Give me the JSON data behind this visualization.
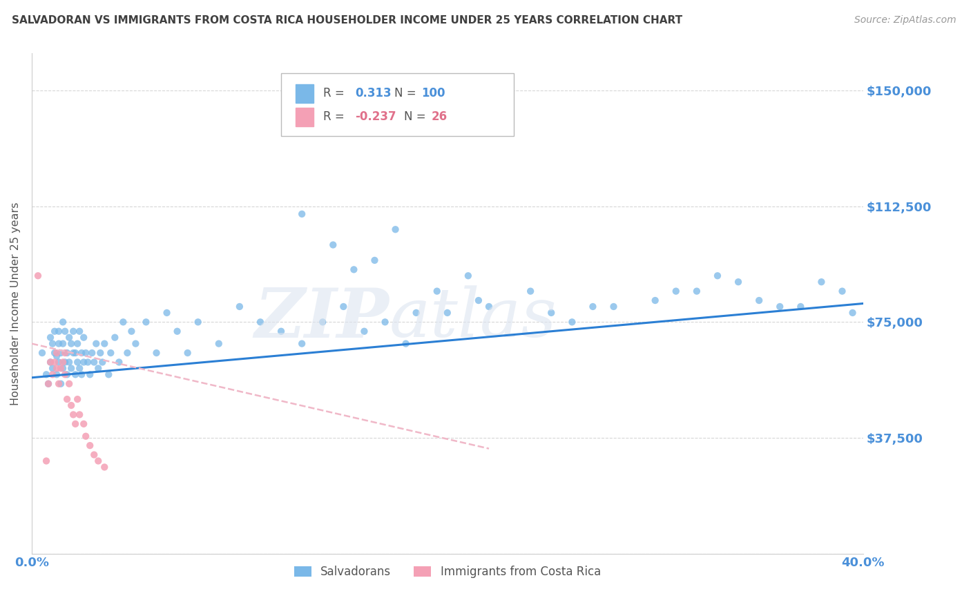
{
  "title": "SALVADORAN VS IMMIGRANTS FROM COSTA RICA HOUSEHOLDER INCOME UNDER 25 YEARS CORRELATION CHART",
  "source": "Source: ZipAtlas.com",
  "ylabel": "Householder Income Under 25 years",
  "yticks": [
    0,
    37500,
    75000,
    112500,
    150000
  ],
  "ytick_labels": [
    "",
    "$37,500",
    "$75,000",
    "$112,500",
    "$150,000"
  ],
  "xlim": [
    0.0,
    0.4
  ],
  "ylim": [
    0,
    162000
  ],
  "watermark": "ZIPAtlas",
  "salvadoran_color": "#7ab8e8",
  "costarica_color": "#f4a0b5",
  "trend_blue": "#2b7fd4",
  "trend_pink": "#f0b8c8",
  "axis_label_color": "#4a90d9",
  "grid_color": "#cccccc",
  "title_color": "#404040",
  "watermark_color": "#dde5f0",
  "blue_trend_x0": 0.0,
  "blue_trend_x1": 0.4,
  "blue_trend_y0": 57000,
  "blue_trend_y1": 81000,
  "pink_trend_x0": 0.0,
  "pink_trend_x1": 0.22,
  "pink_trend_y0": 68000,
  "pink_trend_y1": 34000,
  "salvadoran_x": [
    0.005,
    0.007,
    0.008,
    0.009,
    0.009,
    0.01,
    0.01,
    0.011,
    0.011,
    0.012,
    0.012,
    0.013,
    0.013,
    0.013,
    0.014,
    0.014,
    0.015,
    0.015,
    0.015,
    0.016,
    0.016,
    0.017,
    0.017,
    0.018,
    0.018,
    0.019,
    0.019,
    0.02,
    0.02,
    0.021,
    0.021,
    0.022,
    0.022,
    0.023,
    0.023,
    0.024,
    0.024,
    0.025,
    0.025,
    0.026,
    0.027,
    0.028,
    0.029,
    0.03,
    0.031,
    0.032,
    0.033,
    0.034,
    0.035,
    0.037,
    0.038,
    0.04,
    0.042,
    0.044,
    0.046,
    0.048,
    0.05,
    0.055,
    0.06,
    0.065,
    0.07,
    0.075,
    0.08,
    0.09,
    0.1,
    0.11,
    0.12,
    0.13,
    0.14,
    0.15,
    0.16,
    0.17,
    0.18,
    0.2,
    0.22,
    0.24,
    0.26,
    0.28,
    0.3,
    0.32,
    0.34,
    0.36,
    0.165,
    0.185,
    0.21,
    0.25,
    0.27,
    0.31,
    0.33,
    0.35,
    0.37,
    0.38,
    0.39,
    0.395,
    0.13,
    0.145,
    0.155,
    0.175,
    0.195,
    0.215
  ],
  "salvadoran_y": [
    65000,
    58000,
    55000,
    62000,
    70000,
    60000,
    68000,
    65000,
    72000,
    58000,
    64000,
    62000,
    68000,
    72000,
    55000,
    65000,
    60000,
    68000,
    75000,
    62000,
    72000,
    58000,
    65000,
    62000,
    70000,
    60000,
    68000,
    65000,
    72000,
    58000,
    65000,
    62000,
    68000,
    60000,
    72000,
    58000,
    65000,
    62000,
    70000,
    65000,
    62000,
    58000,
    65000,
    62000,
    68000,
    60000,
    65000,
    62000,
    68000,
    58000,
    65000,
    70000,
    62000,
    75000,
    65000,
    72000,
    68000,
    75000,
    65000,
    78000,
    72000,
    65000,
    75000,
    68000,
    80000,
    75000,
    72000,
    68000,
    75000,
    80000,
    72000,
    75000,
    68000,
    78000,
    80000,
    85000,
    75000,
    80000,
    82000,
    85000,
    88000,
    80000,
    95000,
    78000,
    90000,
    78000,
    80000,
    85000,
    90000,
    82000,
    80000,
    88000,
    85000,
    78000,
    110000,
    100000,
    92000,
    105000,
    85000,
    82000
  ],
  "costarica_x": [
    0.003,
    0.007,
    0.008,
    0.009,
    0.01,
    0.011,
    0.012,
    0.012,
    0.013,
    0.014,
    0.015,
    0.016,
    0.016,
    0.017,
    0.018,
    0.019,
    0.02,
    0.021,
    0.022,
    0.023,
    0.025,
    0.026,
    0.028,
    0.03,
    0.032,
    0.035
  ],
  "costarica_y": [
    90000,
    30000,
    55000,
    62000,
    58000,
    62000,
    60000,
    65000,
    55000,
    60000,
    62000,
    58000,
    65000,
    50000,
    55000,
    48000,
    45000,
    42000,
    50000,
    45000,
    42000,
    38000,
    35000,
    32000,
    30000,
    28000
  ]
}
